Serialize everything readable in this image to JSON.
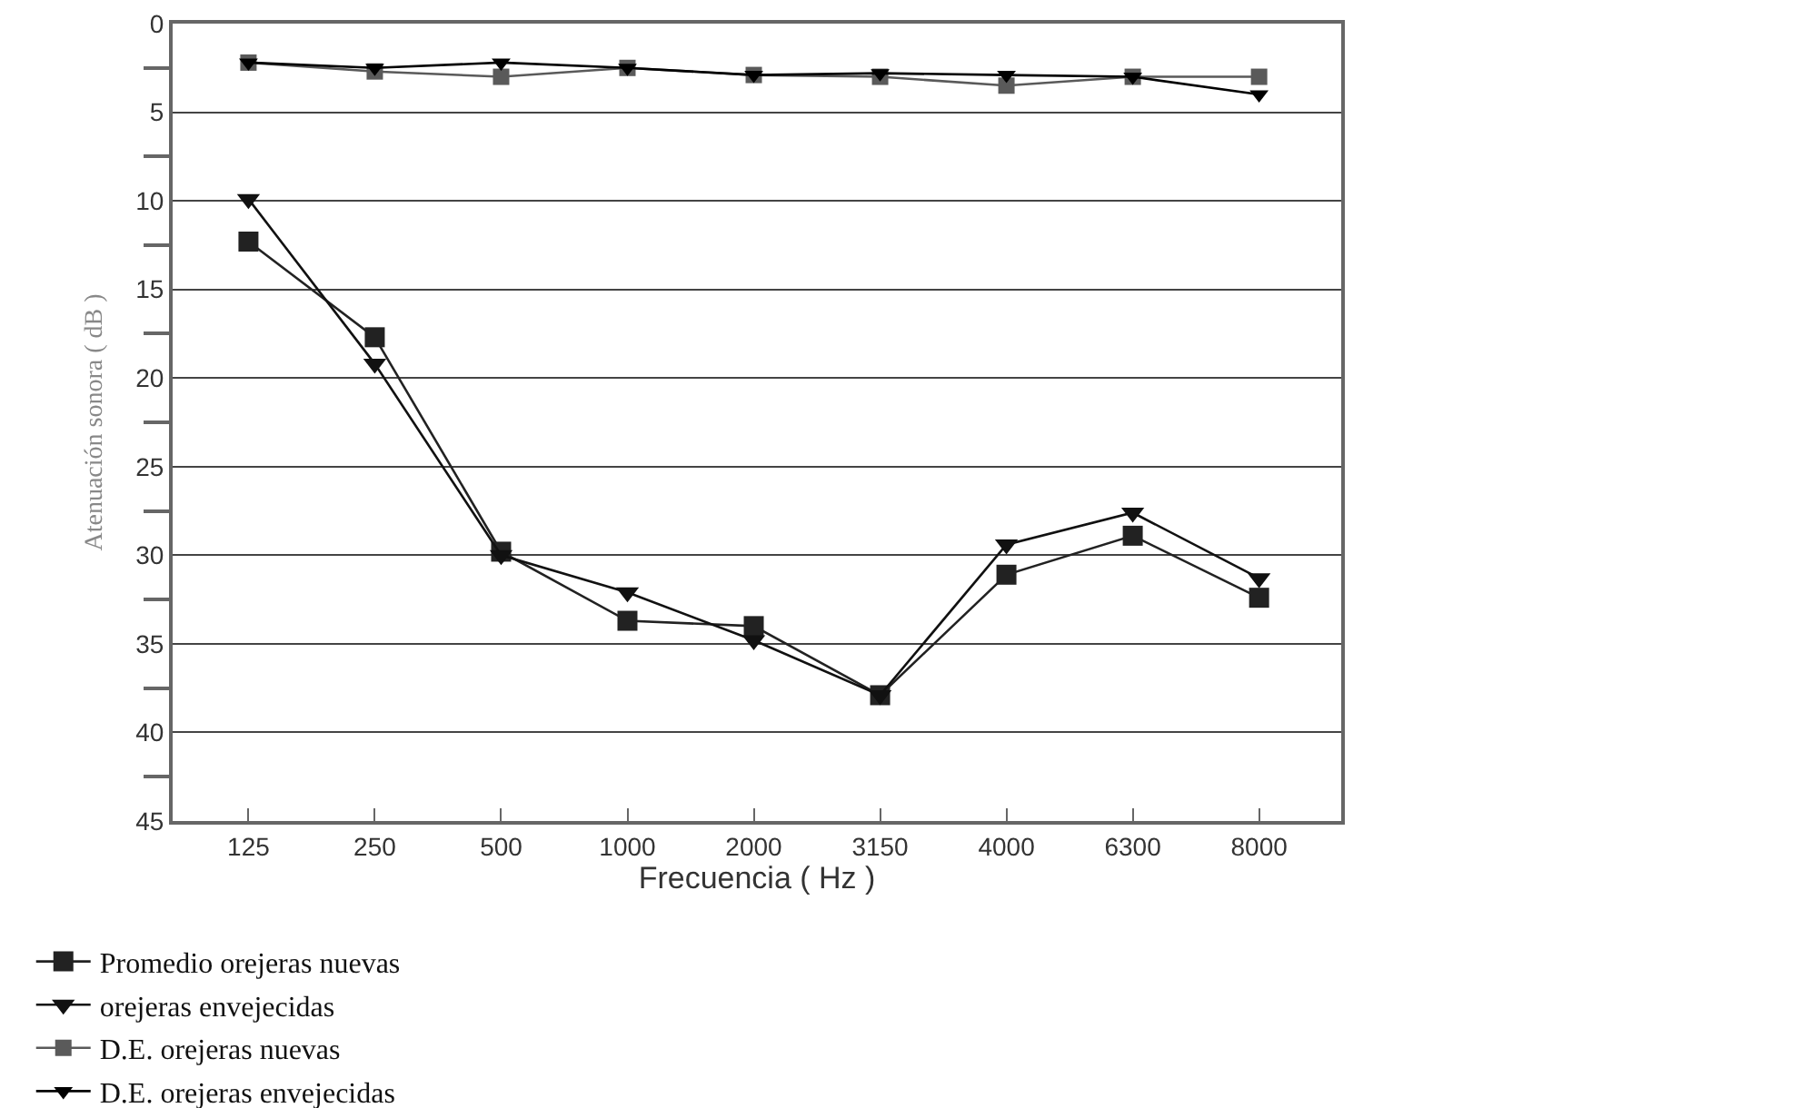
{
  "chart_data": {
    "type": "line",
    "xlabel": "Frecuencia ( Hz )",
    "ylabel": "Atenuación sonora ( dB )",
    "categories": [
      "125",
      "250",
      "500",
      "1000",
      "2000",
      "3150",
      "4000",
      "6300",
      "8000"
    ],
    "series": [
      {
        "name": "Promedio orejeras nuevas",
        "color": "#222222",
        "marker": "square",
        "values": [
          12.3,
          17.7,
          29.8,
          33.7,
          34.0,
          37.9,
          31.1,
          28.9,
          32.4
        ]
      },
      {
        "name": "orejeras envejecidas",
        "color": "#111111",
        "marker": "triangle",
        "values": [
          9.9,
          19.2,
          30.0,
          32.1,
          34.8,
          37.9,
          29.4,
          27.6,
          31.3
        ]
      },
      {
        "name": "D.E. orejeras nuevas",
        "color": "#5a5a5a",
        "marker": "square",
        "values": [
          2.2,
          2.7,
          3.0,
          2.5,
          2.9,
          3.0,
          3.5,
          3.0,
          3.0
        ]
      },
      {
        "name": "D.E. orejeras envejecidas",
        "color": "#000000",
        "marker": "triangle",
        "values": [
          2.2,
          2.5,
          2.2,
          2.5,
          2.9,
          2.8,
          2.9,
          3.0,
          4.0
        ]
      }
    ],
    "ylim": [
      45,
      0
    ],
    "yticks": [
      0,
      5,
      10,
      15,
      20,
      25,
      30,
      35,
      40,
      45
    ],
    "grid": "y",
    "legend": "bottom",
    "line_style": "solid"
  }
}
